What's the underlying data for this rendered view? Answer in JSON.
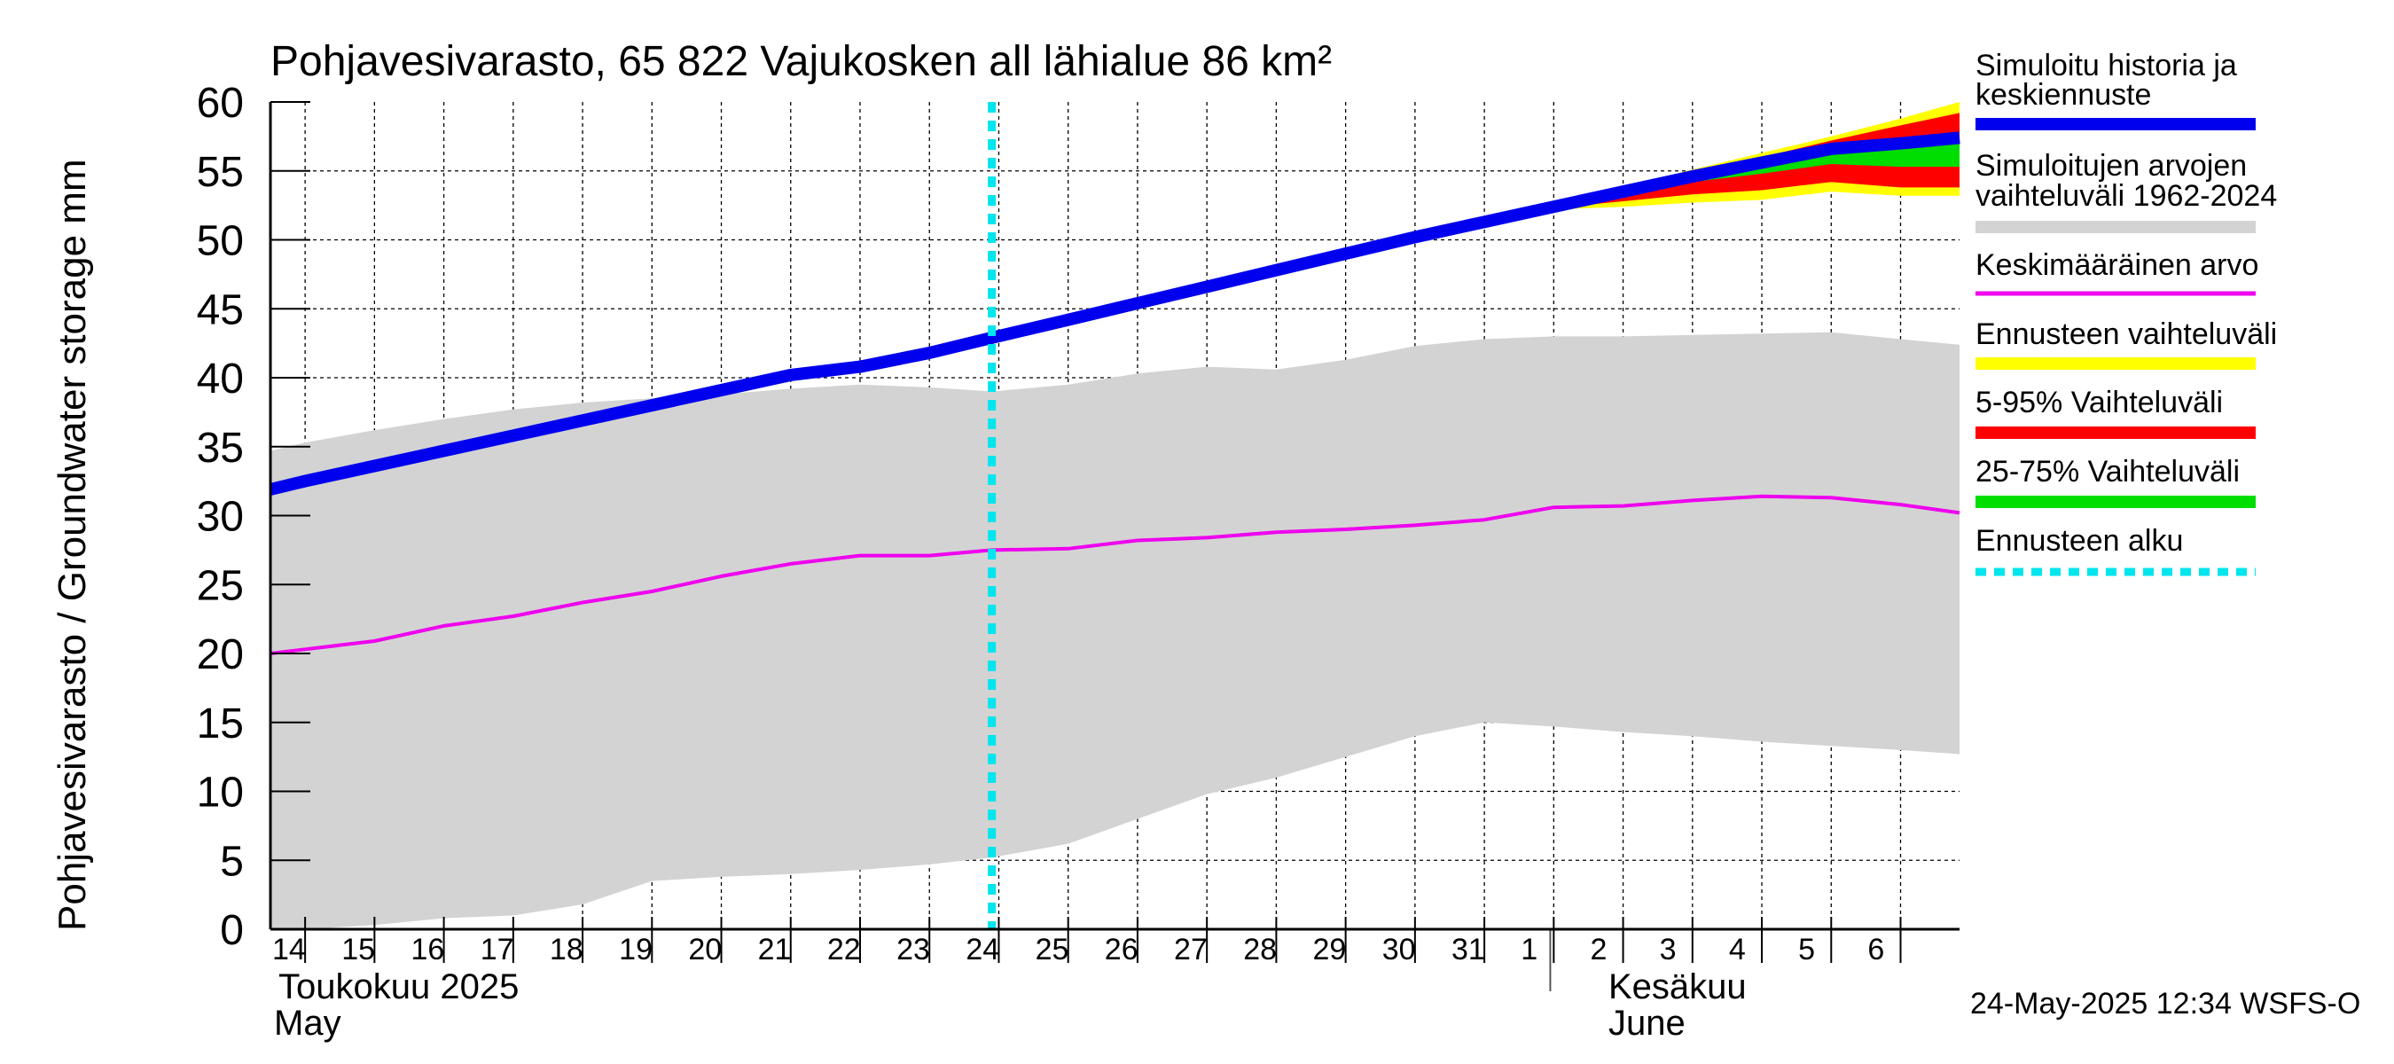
{
  "chart_data": {
    "type": "area",
    "title": "Pohjavesivarasto, 65 822 Vajukosken all lähialue 86 km²",
    "ylabel": "Pohjavesivarasto / Groundwater storage   mm",
    "ylim": [
      0,
      60
    ],
    "yticks": [
      0,
      5,
      10,
      15,
      20,
      25,
      30,
      35,
      40,
      45,
      50,
      55,
      60
    ],
    "xlim": [
      13.5,
      37.85
    ],
    "x_day_labels": [
      "14",
      "15",
      "16",
      "17",
      "18",
      "19",
      "20",
      "21",
      "22",
      "23",
      "24",
      "25",
      "26",
      "27",
      "28",
      "29",
      "30",
      "31",
      "1",
      "2",
      "3",
      "4",
      "5",
      "6"
    ],
    "month_labels": {
      "may_fi": "Toukokuu  2025",
      "may_en": "May",
      "june_fi": "Kesäkuu",
      "june_en": "June"
    },
    "timestamp": "24-May-2025 12:34 WSFS-O",
    "forecast_start": 23.9,
    "grid": true,
    "legend_position": "right",
    "legend": [
      {
        "label": "Simuloitu historia ja keskiennuste",
        "color": "#0000ee"
      },
      {
        "label": "Simuloitujen arvojen vaihteluväli 1962-2024",
        "color": "#d3d3d3"
      },
      {
        "label": "Keskimääräinen arvo",
        "color": "#ee00ee"
      },
      {
        "label": "Ennusteen vaihteluväli",
        "color": "#ffff00"
      },
      {
        "label": "5-95% Vaihteluväli",
        "color": "#ff0000"
      },
      {
        "label": "25-75% Vaihteluväli",
        "color": "#00dd00"
      },
      {
        "label": "Ennusteen alku",
        "color": "#00e5ee"
      }
    ],
    "series": [
      {
        "name": "Simuloitujen arvojen vaihteluväli 1962-2024",
        "kind": "band",
        "x": [
          13.5,
          14,
          15,
          16,
          17,
          18,
          19,
          20,
          21,
          22,
          23,
          23.9,
          25,
          26,
          27,
          28,
          29,
          30,
          31,
          32,
          33,
          34,
          35,
          36,
          37,
          37.85
        ],
        "low": [
          0,
          0,
          0.3,
          0.8,
          1.0,
          1.8,
          3.5,
          3.8,
          4.0,
          4.3,
          4.7,
          5.2,
          6.2,
          8.0,
          9.8,
          11.0,
          12.5,
          14.0,
          15.0,
          14.7,
          14.3,
          14.0,
          13.6,
          13.3,
          13.0,
          12.7
        ],
        "high": [
          34.7,
          35.3,
          36.2,
          37.0,
          37.7,
          38.2,
          38.5,
          38.8,
          39.2,
          39.5,
          39.3,
          39.0,
          39.5,
          40.3,
          40.8,
          40.6,
          41.3,
          42.3,
          42.8,
          43.0,
          43.0,
          43.1,
          43.2,
          43.3,
          42.8,
          42.4
        ]
      },
      {
        "name": "Keskimääräinen arvo",
        "kind": "line",
        "x": [
          13.5,
          14,
          15,
          16,
          17,
          18,
          19,
          20,
          21,
          22,
          23,
          23.9,
          25,
          26,
          27,
          28,
          29,
          30,
          31,
          32,
          33,
          34,
          35,
          36,
          37,
          37.85
        ],
        "y": [
          20.0,
          20.3,
          20.9,
          22.0,
          22.7,
          23.7,
          24.5,
          25.6,
          26.5,
          27.1,
          27.1,
          27.5,
          27.6,
          28.2,
          28.4,
          28.8,
          29.0,
          29.3,
          29.7,
          30.6,
          30.7,
          31.1,
          31.4,
          31.3,
          30.8,
          30.2
        ]
      },
      {
        "name": "Ennusteen vaihteluväli",
        "kind": "band",
        "x": [
          31,
          32,
          33,
          34,
          35,
          36,
          37,
          37.85
        ],
        "low": [
          51.1,
          52.2,
          52.4,
          52.7,
          52.9,
          53.5,
          53.2,
          53.2
        ],
        "high": [
          51.1,
          52.6,
          53.8,
          55.1,
          56.3,
          57.5,
          58.8,
          60.0
        ]
      },
      {
        "name": "5-95% Vaihteluväli",
        "kind": "band",
        "x": [
          31,
          32,
          33,
          34,
          35,
          36,
          37,
          37.85
        ],
        "low": [
          51.1,
          52.3,
          52.8,
          53.3,
          53.6,
          54.2,
          53.8,
          53.8
        ],
        "high": [
          51.1,
          52.5,
          53.6,
          54.8,
          56.0,
          57.2,
          58.3,
          59.2
        ]
      },
      {
        "name": "25-75% Vaihteluväli",
        "kind": "band",
        "x": [
          31,
          32,
          33,
          34,
          35,
          36,
          37,
          37.85
        ],
        "low": [
          51.1,
          52.3,
          53.3,
          54.2,
          54.8,
          55.5,
          55.3,
          55.3
        ],
        "high": [
          51.1,
          52.4,
          53.5,
          54.6,
          55.6,
          56.7,
          57.2,
          57.5
        ]
      },
      {
        "name": "Simuloitu historia ja keskiennuste",
        "kind": "line",
        "x": [
          13.5,
          14,
          15,
          16,
          17,
          18,
          19,
          20,
          21,
          22,
          23,
          23.9,
          25,
          26,
          27,
          28,
          29,
          30,
          31,
          32,
          33,
          34,
          35,
          36,
          37,
          37.85
        ],
        "y": [
          31.9,
          32.5,
          33.6,
          34.7,
          35.8,
          36.9,
          38.0,
          39.1,
          40.2,
          40.8,
          41.8,
          42.9,
          44.2,
          45.4,
          46.6,
          47.8,
          49.0,
          50.2,
          51.3,
          52.4,
          53.5,
          54.6,
          55.6,
          56.6,
          57.0,
          57.4
        ]
      }
    ]
  }
}
